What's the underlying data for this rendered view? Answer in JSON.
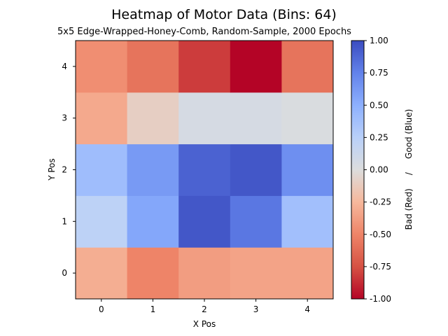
{
  "chart_data": {
    "type": "heatmap",
    "title": "Heatmap of Motor Data (Bins: 64)",
    "subtitle": "5x5 Edge-Wrapped-Honey-Comb, Random-Sample, 2000 Epochs",
    "xlabel": "X Pos",
    "ylabel": "Y Pos",
    "x_ticks": [
      "0",
      "1",
      "2",
      "3",
      "4"
    ],
    "y_ticks": [
      "0",
      "1",
      "2",
      "3",
      "4"
    ],
    "colormap": "coolwarm (reversed: red = -1, blue = +1)",
    "colorbar": {
      "label": "Bad (Red)     /     Good (Blue)",
      "range": [
        -1.0,
        1.0
      ],
      "ticks": [
        "-1.00",
        "-0.75",
        "-0.50",
        "-0.25",
        "0.00",
        "0.25",
        "0.50",
        "0.75",
        "1.00"
      ]
    },
    "values": [
      [
        -0.3,
        -0.5,
        -0.38,
        -0.35,
        -0.35
      ],
      [
        0.22,
        0.55,
        0.95,
        0.8,
        0.38
      ],
      [
        0.4,
        0.62,
        0.9,
        0.95,
        0.68
      ],
      [
        -0.32,
        -0.1,
        0.05,
        0.05,
        0.02
      ],
      [
        -0.45,
        -0.58,
        -0.82,
        -1.0,
        -0.58
      ]
    ]
  }
}
